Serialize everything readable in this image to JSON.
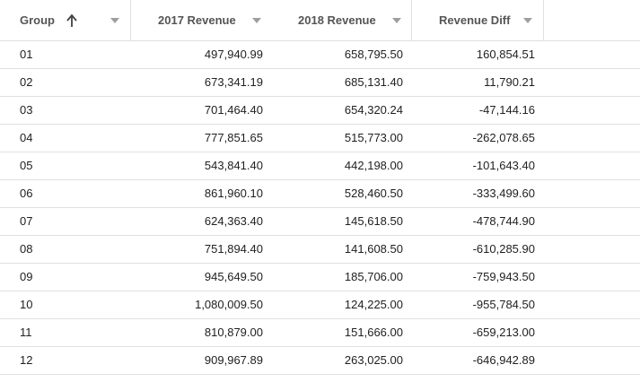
{
  "columns": [
    {
      "label": "Group",
      "sorted": "asc"
    },
    {
      "label": "2017 Revenue"
    },
    {
      "label": "2018 Revenue"
    },
    {
      "label": "Revenue Diff"
    }
  ],
  "rows": [
    {
      "group": "01",
      "rev2017": "497,940.99",
      "rev2018": "658,795.50",
      "diff": "160,854.51"
    },
    {
      "group": "02",
      "rev2017": "673,341.19",
      "rev2018": "685,131.40",
      "diff": "11,790.21"
    },
    {
      "group": "03",
      "rev2017": "701,464.40",
      "rev2018": "654,320.24",
      "diff": "-47,144.16"
    },
    {
      "group": "04",
      "rev2017": "777,851.65",
      "rev2018": "515,773.00",
      "diff": "-262,078.65"
    },
    {
      "group": "05",
      "rev2017": "543,841.40",
      "rev2018": "442,198.00",
      "diff": "-101,643.40"
    },
    {
      "group": "06",
      "rev2017": "861,960.10",
      "rev2018": "528,460.50",
      "diff": "-333,499.60"
    },
    {
      "group": "07",
      "rev2017": "624,363.40",
      "rev2018": "145,618.50",
      "diff": "-478,744.90"
    },
    {
      "group": "08",
      "rev2017": "751,894.40",
      "rev2018": "141,608.50",
      "diff": "-610,285.90"
    },
    {
      "group": "09",
      "rev2017": "945,649.50",
      "rev2018": "185,706.00",
      "diff": "-759,943.50"
    },
    {
      "group": "10",
      "rev2017": "1,080,009.50",
      "rev2018": "124,225.00",
      "diff": "-955,784.50"
    },
    {
      "group": "11",
      "rev2017": "810,879.00",
      "rev2018": "151,666.00",
      "diff": "-659,213.00"
    },
    {
      "group": "12",
      "rev2017": "909,967.89",
      "rev2018": "263,025.00",
      "diff": "-646,942.89"
    }
  ]
}
